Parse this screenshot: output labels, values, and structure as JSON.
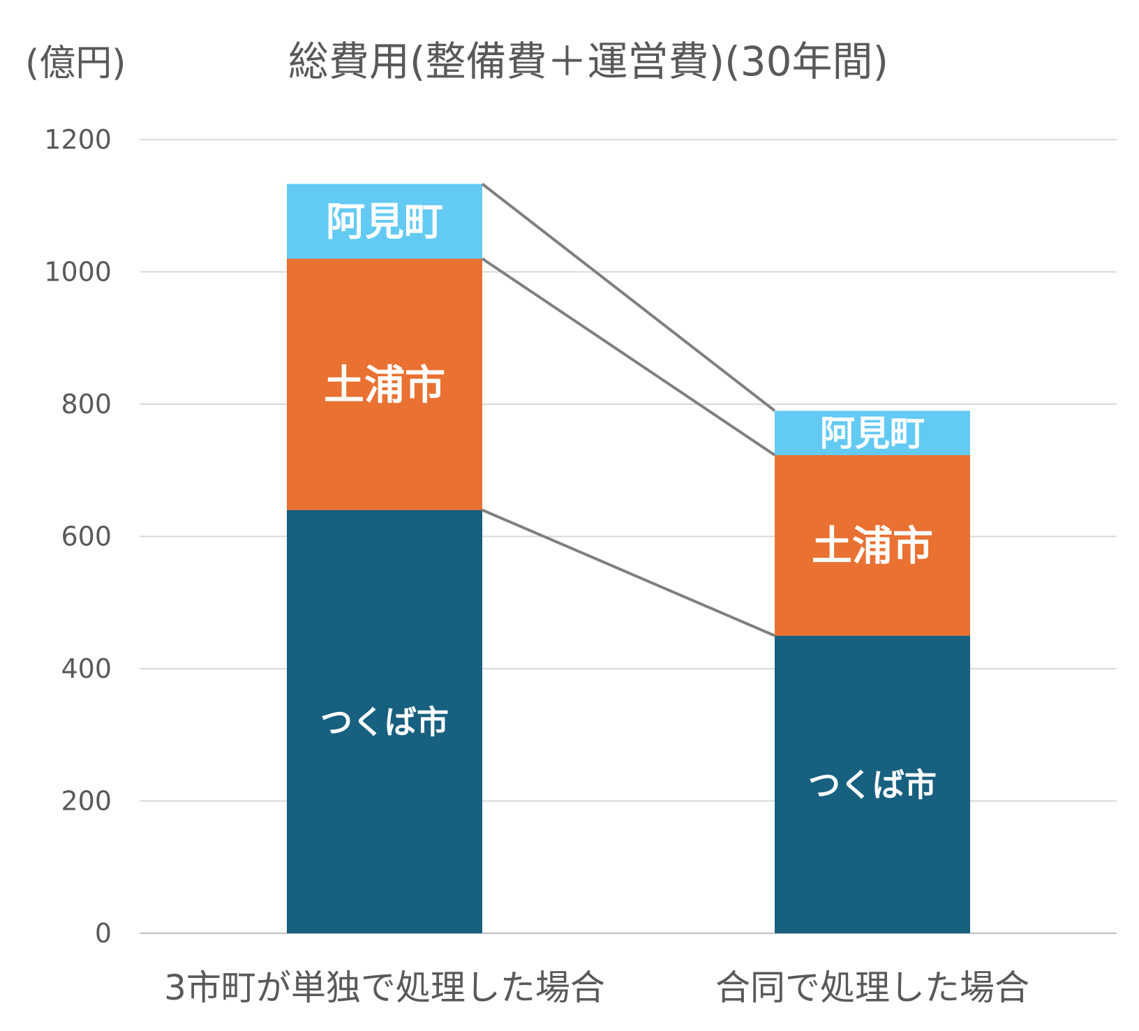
{
  "chart_data": {
    "type": "bar",
    "stacked": true,
    "title": "総費用(整備費＋運営費)(30年間)",
    "unit_label": "(億円)",
    "xlabel": "",
    "ylabel": "",
    "ylim": [
      0,
      1200
    ],
    "yticks": [
      0,
      200,
      400,
      600,
      800,
      1000,
      1200
    ],
    "grid": true,
    "legend": "none",
    "categories": [
      "3市町が単独で処理した場合",
      "合同で処理した場合"
    ],
    "series": [
      {
        "name": "つくば市",
        "values": [
          640,
          450
        ],
        "color": "#17607F"
      },
      {
        "name": "土浦市",
        "values": [
          380,
          273
        ],
        "color": "#E97132"
      },
      {
        "name": "阿見町",
        "values": [
          113,
          67
        ],
        "color": "#63CAF3"
      }
    ],
    "connector_color": "#7F7F7F"
  }
}
